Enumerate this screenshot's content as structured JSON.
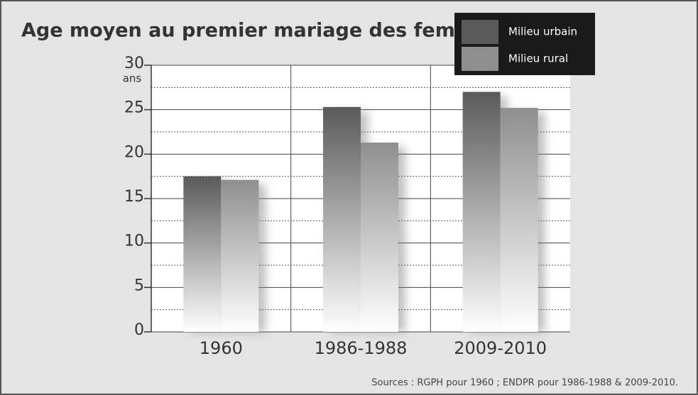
{
  "chart_data": {
    "type": "bar",
    "title": "Age moyen au premier mariage des femmes",
    "y_unit": "ans",
    "source": "Sources : RGPH pour 1960 ; ENDPR pour 1986-1988 & 2009-2010.",
    "categories": [
      "1960",
      "1986-1988",
      "2009-2010"
    ],
    "series": [
      {
        "name": "Milieu urbain",
        "color": "#5a5a5a",
        "values": [
          17.5,
          25.3,
          27.0
        ]
      },
      {
        "name": "Milieu rural",
        "color": "#8f8f8f",
        "values": [
          17.1,
          21.3,
          25.2
        ]
      }
    ],
    "ylim": [
      0,
      30
    ],
    "yticks": [
      0,
      5,
      10,
      15,
      20,
      25,
      30
    ],
    "grid": true
  }
}
